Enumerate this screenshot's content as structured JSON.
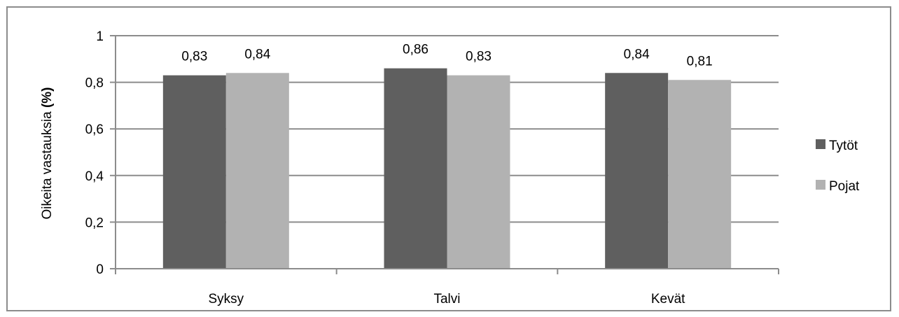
{
  "chart_data": {
    "type": "bar",
    "ylabel_main": "Oikeita vastauksia ",
    "ylabel_bold": "(%)",
    "categories": [
      "Syksy",
      "Talvi",
      "Kevät"
    ],
    "series": [
      {
        "name": "Tytöt",
        "color": "#5f5f5f",
        "values": [
          0.83,
          0.86,
          0.84
        ],
        "labels": [
          "0,83",
          "0,86",
          "0,84"
        ]
      },
      {
        "name": "Pojat",
        "color": "#b2b2b2",
        "values": [
          0.84,
          0.83,
          0.81
        ],
        "labels": [
          "0,84",
          "0,83",
          "0,81"
        ]
      }
    ],
    "ylim": [
      0,
      1
    ],
    "yticks": [
      0,
      0.2,
      0.4,
      0.6,
      0.8,
      1
    ],
    "ytick_labels": [
      "0",
      "0,2",
      "0,4",
      "0,6",
      "0,8",
      "1"
    ],
    "grid": true,
    "legend_position": "right"
  }
}
